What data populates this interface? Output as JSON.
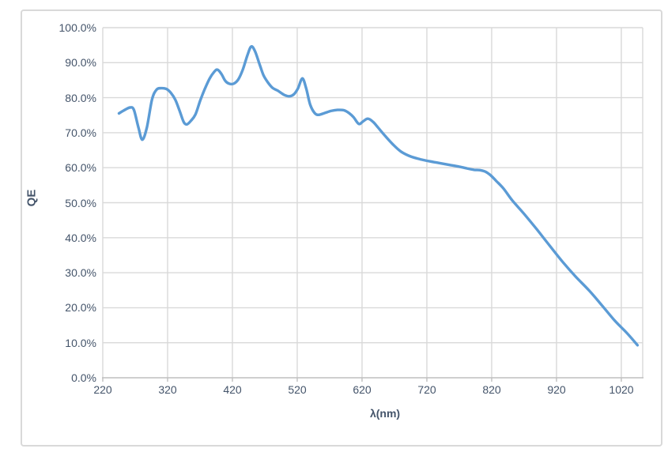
{
  "chart": {
    "y_axis_title": "QE",
    "x_axis_title": "λ(nm)",
    "colors": {
      "series_line": "#5B9BD5",
      "gridline": "#D9D9D9",
      "axis_line": "#BFBFBF",
      "text": "#44546A",
      "border": "#D9D9D9",
      "background": "#FFFFFF"
    }
  },
  "chart_data": {
    "type": "line",
    "title": "",
    "xlabel": "λ(nm)",
    "ylabel": "QE",
    "x_tick_values": [
      220,
      320,
      420,
      520,
      620,
      720,
      820,
      920,
      1020
    ],
    "x_tick_labels": [
      "220",
      "320",
      "420",
      "520",
      "620",
      "720",
      "820",
      "920",
      "1020"
    ],
    "y_tick_values": [
      0,
      10,
      20,
      30,
      40,
      50,
      60,
      70,
      80,
      90,
      100
    ],
    "y_tick_labels": [
      "0.0%",
      "10.0%",
      "20.0%",
      "30.0%",
      "40.0%",
      "50.0%",
      "60.0%",
      "70.0%",
      "80.0%",
      "90.0%",
      "100.0%"
    ],
    "xlim": [
      220,
      1053
    ],
    "ylim": [
      0,
      100
    ],
    "grid": true,
    "legend": false,
    "series": [
      {
        "name": "QE",
        "x_nm": [
          245,
          252,
          262,
          268,
          275,
          281,
          288,
          296,
          303,
          310,
          318,
          325,
          332,
          339,
          345,
          350,
          356,
          363,
          370,
          377,
          385,
          392,
          397,
          403,
          409,
          415,
          422,
          429,
          436,
          443,
          449,
          455,
          462,
          468,
          475,
          482,
          490,
          500,
          508,
          515,
          521,
          528,
          534,
          540,
          547,
          553,
          562,
          572,
          582,
          592,
          600,
          607,
          615,
          622,
          629,
          637,
          645,
          655,
          668,
          680,
          695,
          710,
          725,
          740,
          755,
          770,
          782,
          793,
          802,
          810,
          818,
          826,
          838,
          852,
          870,
          890,
          910,
          930,
          950,
          970,
          990,
          1010,
          1028,
          1045
        ],
        "y_qe_percent": [
          75.5,
          76.3,
          77.2,
          76.5,
          71.5,
          68.0,
          71.5,
          79.5,
          82.3,
          82.7,
          82.5,
          81.4,
          79.4,
          76.0,
          73.0,
          72.4,
          73.4,
          75.2,
          79.0,
          82.3,
          85.5,
          87.4,
          88.0,
          86.8,
          84.8,
          84.0,
          84.0,
          85.2,
          88.0,
          92.0,
          94.6,
          93.2,
          89.5,
          86.4,
          84.3,
          82.8,
          82.0,
          80.8,
          80.4,
          81.0,
          82.6,
          85.5,
          82.5,
          78.0,
          75.6,
          75.1,
          75.6,
          76.2,
          76.5,
          76.4,
          75.6,
          74.4,
          72.5,
          73.3,
          74.0,
          73.1,
          71.4,
          69.2,
          66.6,
          64.6,
          63.2,
          62.4,
          61.8,
          61.3,
          60.8,
          60.3,
          59.8,
          59.4,
          59.3,
          58.9,
          57.9,
          56.4,
          54.1,
          50.6,
          46.8,
          42.3,
          37.6,
          33.0,
          28.8,
          25.0,
          20.7,
          16.3,
          12.9,
          9.3
        ]
      }
    ]
  }
}
